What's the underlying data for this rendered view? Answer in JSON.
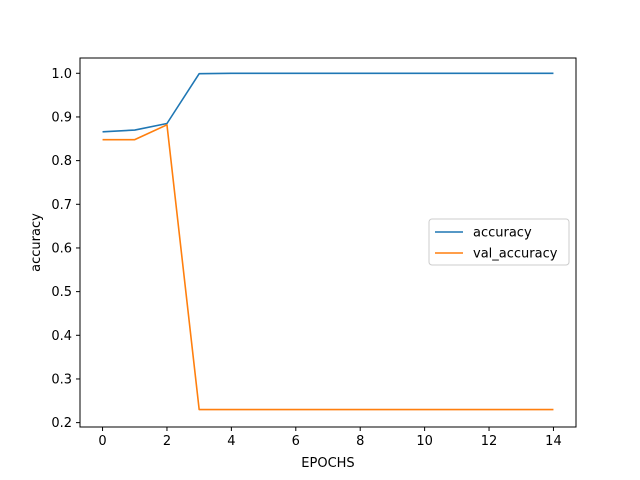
{
  "chart_data": {
    "type": "line",
    "title": "",
    "xlabel": "EPOCHS",
    "ylabel": "accuracy",
    "x": [
      0,
      1,
      2,
      3,
      4,
      5,
      6,
      7,
      8,
      9,
      10,
      11,
      12,
      13,
      14
    ],
    "xlim": [
      -0.7,
      14.7
    ],
    "ylim": [
      0.19,
      1.035
    ],
    "xticks": [
      0,
      2,
      4,
      6,
      8,
      10,
      12,
      14
    ],
    "yticks": [
      0.2,
      0.3,
      0.4,
      0.5,
      0.6,
      0.7,
      0.8,
      0.9,
      1.0
    ],
    "xtick_labels": [
      "0",
      "2",
      "4",
      "6",
      "8",
      "10",
      "12",
      "14"
    ],
    "ytick_labels": [
      "0.2",
      "0.3",
      "0.4",
      "0.5",
      "0.6",
      "0.7",
      "0.8",
      "0.9",
      "1.0"
    ],
    "grid": false,
    "legend_position": "center-right",
    "series": [
      {
        "name": "accuracy",
        "color": "#1f77b4",
        "values": [
          0.866,
          0.87,
          0.885,
          0.999,
          1.0,
          1.0,
          1.0,
          1.0,
          1.0,
          1.0,
          1.0,
          1.0,
          1.0,
          1.0,
          1.0
        ]
      },
      {
        "name": "val_accuracy",
        "color": "#ff7f0e",
        "values": [
          0.848,
          0.848,
          0.882,
          0.23,
          0.23,
          0.23,
          0.23,
          0.23,
          0.23,
          0.23,
          0.23,
          0.23,
          0.23,
          0.23,
          0.23
        ]
      }
    ]
  }
}
